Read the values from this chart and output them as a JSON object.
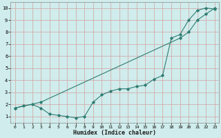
{
  "title": "",
  "xlabel": "Humidex (Indice chaleur)",
  "ylabel": "",
  "background_color": "#d0ecec",
  "grid_color_v": "#e8c8c8",
  "grid_color_h": "#e8c8c8",
  "line_color": "#2e7d72",
  "xlim": [
    -0.5,
    23.5
  ],
  "ylim": [
    0.5,
    10.5
  ],
  "xticks": [
    0,
    1,
    2,
    3,
    4,
    5,
    6,
    7,
    8,
    9,
    10,
    11,
    12,
    13,
    14,
    15,
    16,
    17,
    18,
    19,
    20,
    21,
    22,
    23
  ],
  "yticks": [
    1,
    2,
    3,
    4,
    5,
    6,
    7,
    8,
    9,
    10
  ],
  "line1_x": [
    0,
    1,
    2,
    3,
    4,
    5,
    6,
    7,
    8,
    9,
    10,
    11,
    12,
    13,
    14,
    15,
    16,
    17,
    18,
    19,
    20,
    21,
    22,
    23
  ],
  "line1_y": [
    1.7,
    1.9,
    2.0,
    1.7,
    1.2,
    1.1,
    1.0,
    0.9,
    1.0,
    2.2,
    2.8,
    3.1,
    3.3,
    3.3,
    3.5,
    3.6,
    4.1,
    4.4,
    7.5,
    7.8,
    9.0,
    9.8,
    10.0,
    9.9
  ],
  "line2_x": [
    0,
    3,
    19,
    20,
    21,
    22,
    23
  ],
  "line2_y": [
    1.7,
    2.2,
    7.5,
    8.0,
    9.0,
    9.5,
    10.0
  ],
  "figwidth": 3.2,
  "figheight": 2.0,
  "dpi": 100
}
